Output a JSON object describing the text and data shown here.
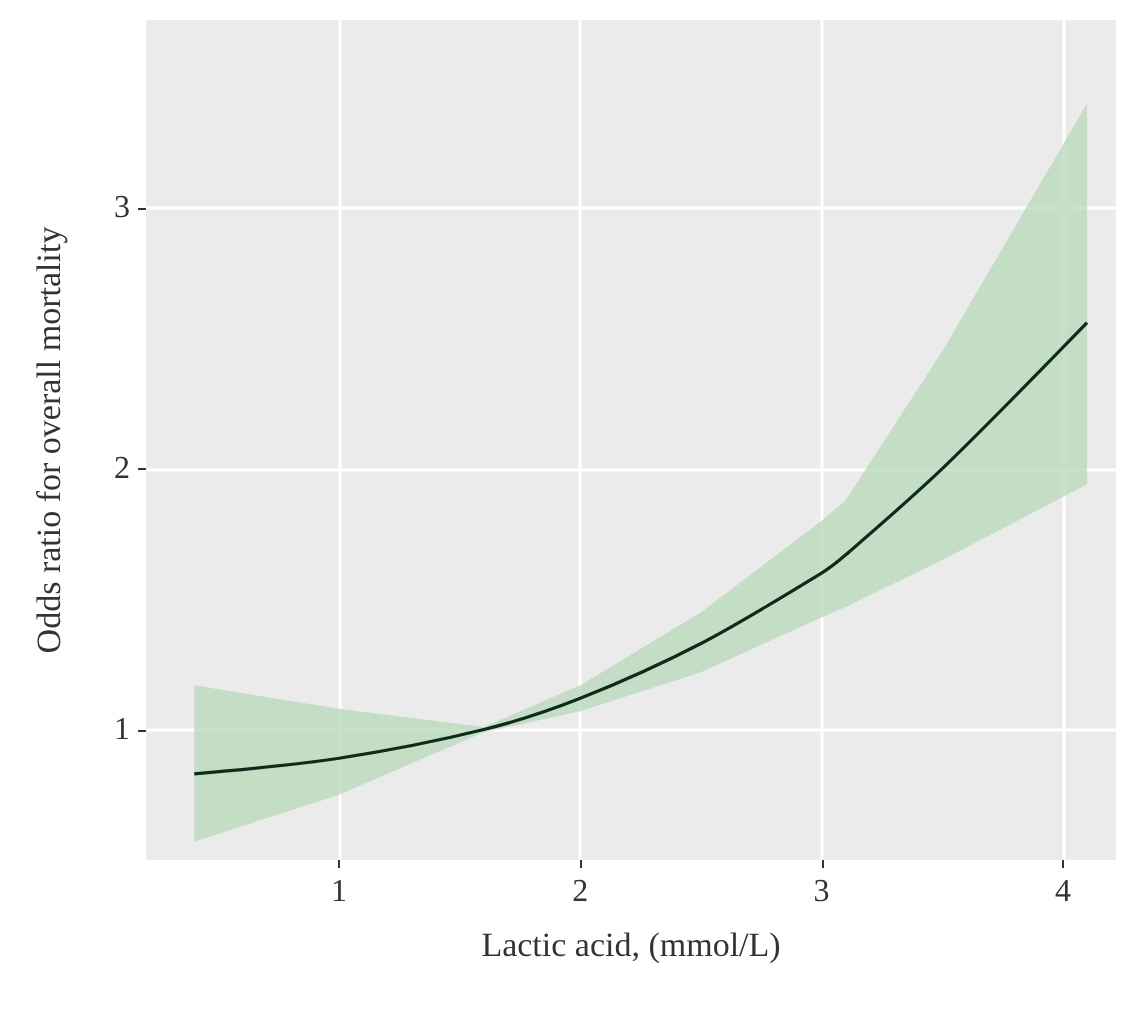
{
  "chart_data": {
    "type": "line",
    "xlabel": "Lactic acid, (mmol/L)",
    "ylabel": "Odds ratio for overall mortality",
    "xlim": [
      0.2,
      4.22
    ],
    "xticks": [
      1,
      2,
      3,
      4
    ],
    "ylim": [
      0.5,
      3.72
    ],
    "yticks": [
      1,
      2,
      3
    ],
    "grid": true,
    "marker": "none",
    "line_style": "solid",
    "series": [
      {
        "color": "#0d2b1c",
        "x": [
          0.4,
          1,
          1.6,
          2,
          2.5,
          3,
          3.1,
          3.5,
          4.1
        ],
        "values": [
          0.83,
          0.89,
          1.0,
          1.12,
          1.33,
          1.6,
          1.67,
          2.0,
          2.56
        ],
        "lower": [
          0.57,
          0.75,
          0.99,
          1.07,
          1.22,
          1.43,
          1.47,
          1.65,
          1.94
        ],
        "upper": [
          1.17,
          1.08,
          1.01,
          1.17,
          1.45,
          1.8,
          1.88,
          2.45,
          3.4
        ]
      }
    ]
  }
}
